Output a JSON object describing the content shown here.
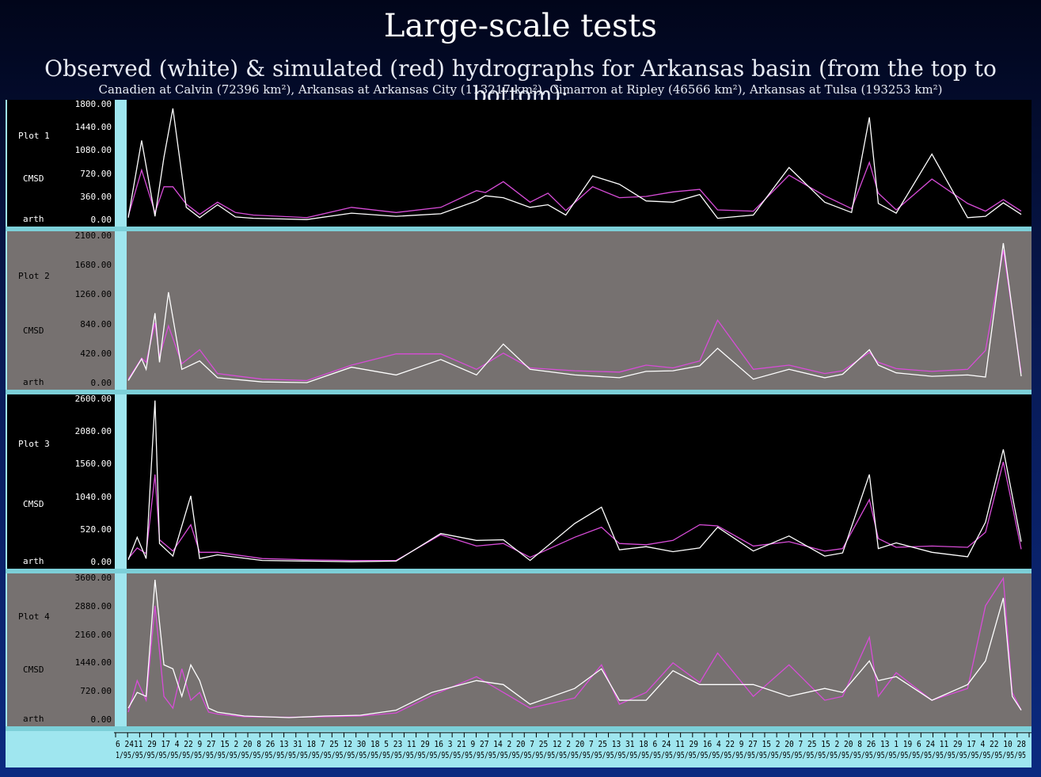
{
  "slide": {
    "title": "Large-scale tests",
    "subtitle": "Observed (white) & simulated (red) hydrographs for Arkansas basin (from the top to bottom):",
    "caption": "Canadien at Calvin (72396 km²), Arkansas at Arkansas City (113217 km²), Cimarron at Ripley (46566 km²), Arkansas at Tulsa (193253 km²)"
  },
  "colors": {
    "observed": "#ffffff",
    "simulated": "#d84cd8",
    "dark_panel": "#000000",
    "grey_panel": "#767170",
    "frame": "#9fe6ef"
  },
  "chart_data": [
    {
      "type": "line",
      "title": "Plot 1",
      "ylabel": "CMSD",
      "label_bottom": "arth",
      "ylim": [
        0,
        1800
      ],
      "yticks": [
        "0.00",
        "360.00",
        "720.00",
        "1080.00",
        "1440.00",
        "1800.00"
      ],
      "x": [
        0,
        1.5,
        3,
        4,
        5,
        6.5,
        8,
        10,
        12,
        14,
        17,
        20,
        25,
        30,
        35,
        39,
        40,
        42,
        45,
        47,
        49,
        52,
        55,
        58,
        61,
        64,
        66,
        70,
        74,
        78,
        81,
        83,
        84,
        86,
        90,
        94,
        96,
        98,
        100
      ],
      "series": [
        {
          "name": "observed",
          "values": [
            40,
            1240,
            60,
            980,
            1740,
            200,
            40,
            240,
            50,
            30,
            20,
            10,
            110,
            60,
            100,
            300,
            380,
            350,
            200,
            240,
            80,
            690,
            560,
            300,
            280,
            400,
            30,
            80,
            820,
            280,
            120,
            1600,
            260,
            110,
            1030,
            40,
            60,
            270,
            90
          ]
        },
        {
          "name": "simulated",
          "values": [
            60,
            780,
            120,
            520,
            520,
            250,
            90,
            280,
            120,
            80,
            60,
            40,
            200,
            120,
            200,
            460,
            430,
            600,
            280,
            420,
            150,
            520,
            350,
            370,
            440,
            480,
            160,
            140,
            700,
            380,
            180,
            900,
            420,
            160,
            640,
            260,
            140,
            320,
            140
          ]
        }
      ]
    },
    {
      "type": "line",
      "title": "Plot 2",
      "ylabel": "CMSD",
      "label_bottom": "arth",
      "ylim": [
        0,
        2100
      ],
      "yticks": [
        "0.00",
        "420.00",
        "840.00",
        "1260.00",
        "1680.00",
        "2100.00"
      ],
      "x": [
        0,
        1.5,
        2,
        3,
        3.5,
        4.5,
        6,
        8,
        10,
        15,
        20,
        25,
        30,
        35,
        39,
        42,
        45,
        50,
        55,
        58,
        61,
        64,
        66,
        70,
        74,
        78,
        80,
        83,
        84,
        86,
        90,
        94,
        96,
        98,
        100
      ],
      "series": [
        {
          "name": "observed",
          "values": [
            40,
            350,
            200,
            1000,
            300,
            1300,
            200,
            320,
            80,
            20,
            10,
            230,
            120,
            340,
            120,
            560,
            200,
            120,
            80,
            170,
            180,
            250,
            500,
            60,
            200,
            80,
            130,
            480,
            260,
            150,
            100,
            120,
            90,
            2000,
            100
          ]
        },
        {
          "name": "simulated",
          "values": [
            60,
            360,
            300,
            860,
            380,
            820,
            280,
            480,
            140,
            60,
            40,
            260,
            420,
            420,
            200,
            430,
            220,
            180,
            160,
            260,
            220,
            320,
            900,
            200,
            260,
            140,
            180,
            440,
            300,
            210,
            170,
            200,
            470,
            1900,
            150
          ]
        }
      ]
    },
    {
      "type": "line",
      "title": "Plot 3",
      "ylabel": "CMSD",
      "label_bottom": "arth",
      "ylim": [
        0,
        2600
      ],
      "yticks": [
        "0.00",
        "520.00",
        "1040.00",
        "1560.00",
        "2080.00",
        "2600.00"
      ],
      "x": [
        0,
        1,
        2,
        3,
        3.5,
        5,
        7,
        8,
        10,
        15,
        20,
        25,
        30,
        35,
        39,
        42,
        45,
        50,
        53,
        55,
        58,
        61,
        64,
        66,
        70,
        74,
        78,
        80,
        83,
        84,
        86,
        90,
        94,
        96,
        98,
        100
      ],
      "series": [
        {
          "name": "observed",
          "values": [
            40,
            400,
            60,
            2580,
            300,
            100,
            1060,
            60,
            120,
            30,
            20,
            10,
            20,
            460,
            350,
            360,
            30,
            620,
            880,
            200,
            250,
            170,
            230,
            560,
            180,
            420,
            100,
            150,
            1400,
            220,
            310,
            160,
            90,
            640,
            1800,
            330
          ]
        },
        {
          "name": "simulated",
          "values": [
            60,
            230,
            140,
            1400,
            360,
            180,
            600,
            160,
            160,
            60,
            40,
            30,
            30,
            440,
            260,
            300,
            80,
            400,
            560,
            300,
            280,
            350,
            600,
            580,
            260,
            330,
            180,
            220,
            1000,
            380,
            240,
            260,
            240,
            480,
            1600,
            210
          ]
        }
      ]
    },
    {
      "type": "line",
      "title": "Plot 4",
      "ylabel": "CMSD",
      "label_bottom": "arth",
      "ylim": [
        0,
        3600
      ],
      "yticks": [
        "0.00",
        "720.00",
        "1440.00",
        "2160.00",
        "2880.00",
        "3600.00"
      ],
      "x": [
        0,
        1,
        2,
        3,
        4,
        5,
        6,
        7,
        8,
        9,
        10,
        13,
        18,
        22,
        26,
        30,
        34,
        39,
        42,
        45,
        50,
        53,
        55,
        58,
        61,
        64,
        66,
        70,
        74,
        78,
        80,
        83,
        84,
        86,
        90,
        94,
        96,
        98,
        99,
        100
      ],
      "series": [
        {
          "name": "observed",
          "values": [
            300,
            700,
            600,
            3560,
            1400,
            1300,
            600,
            1400,
            1000,
            300,
            200,
            100,
            60,
            100,
            120,
            250,
            700,
            1000,
            900,
            400,
            800,
            1300,
            500,
            500,
            1250,
            900,
            900,
            900,
            600,
            800,
            700,
            1500,
            1000,
            1100,
            500,
            900,
            1500,
            3100,
            600,
            250
          ]
        },
        {
          "name": "simulated",
          "values": [
            200,
            1000,
            500,
            2900,
            600,
            300,
            1300,
            500,
            700,
            200,
            150,
            80,
            70,
            80,
            100,
            180,
            620,
            1100,
            700,
            300,
            560,
            1400,
            400,
            700,
            1450,
            950,
            1700,
            600,
            1400,
            500,
            600,
            2100,
            600,
            1200,
            500,
            800,
            2900,
            3600,
            700,
            250
          ]
        }
      ]
    }
  ],
  "x_axis": {
    "day_labels": "6 2411 29 17 4 22 9 27 15 2 20 8 26 13 31 18 7 25 12 30 18 5 23 11 29 16 3 21 9 27 14 2 20 7 25 12 2 20 7 25 13 31 18 6 24 11 29 16 4 22 9 27 15 2 20 7 25 15 2 20 8 26 13 1 19 6 24 11 29 17 4 22 10 28",
    "date_labels": "1/95/95/95/95/95/95/95/95/95/95/95/95/95/95/95/95/95/95/95/95/95/95/95/95/95/95/95/95/95/95/95/95/95/95/95/95/95/95/95/95/95/95/95/95/95/95/95/95/95/95/95/95/95/95/95/95/95/95/95/95/95/95/95/95/95/95/95/95/95/95/95/95/95/95/95/95/95"
  }
}
